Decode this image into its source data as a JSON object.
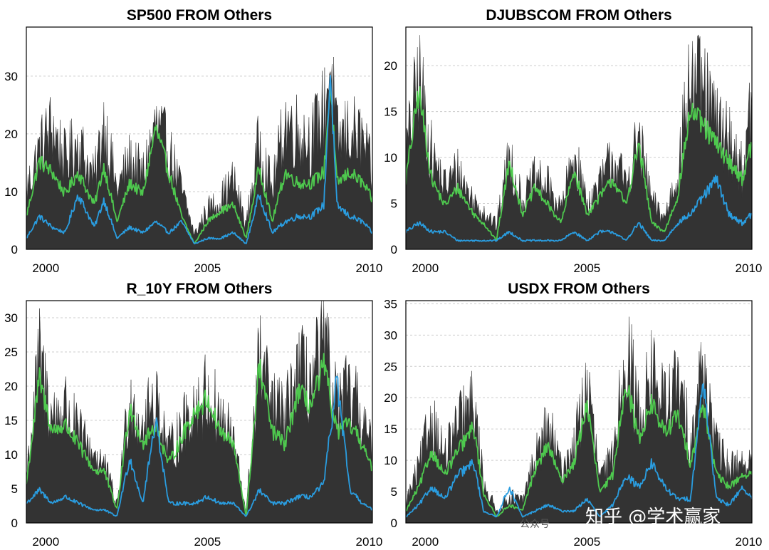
{
  "colors": {
    "total": "#333333",
    "green": "#4ec94e",
    "blue": "#2a9de0",
    "grid": "#cccccc",
    "frame": "#000000"
  },
  "chart_data": [
    {
      "type": "area",
      "title": "SP500 FROM Others",
      "x_ticks": [
        "2000",
        "2005",
        "2010"
      ],
      "x_tick_years": [
        2000,
        2005,
        2010
      ],
      "xlim": [
        1999.4,
        2010.1
      ],
      "ylim": [
        0,
        38.5
      ],
      "y_ticks": [
        0,
        10,
        20,
        30
      ],
      "grid": true,
      "series": [
        {
          "role": "total",
          "x": [
            1999.4,
            1999.8,
            2000.2,
            2000.6,
            2001.0,
            2001.5,
            2001.8,
            2002.2,
            2002.6,
            2003.0,
            2003.4,
            2003.8,
            2004.2,
            2004.6,
            2005.0,
            2005.4,
            2005.8,
            2006.2,
            2006.6,
            2007.0,
            2007.4,
            2007.8,
            2008.2,
            2008.6,
            2008.8,
            2009.0,
            2009.4,
            2009.8,
            2010.1
          ],
          "values": [
            12,
            20,
            25,
            18,
            22,
            14,
            26,
            12,
            18,
            15,
            25,
            20,
            12,
            3,
            8,
            10,
            14,
            5,
            22,
            12,
            26,
            24,
            22,
            28,
            38,
            22,
            24,
            22,
            15
          ]
        },
        {
          "role": "green",
          "x": [
            1999.4,
            1999.8,
            2000.2,
            2000.6,
            2001.0,
            2001.5,
            2001.8,
            2002.2,
            2002.6,
            2003.0,
            2003.4,
            2003.8,
            2004.2,
            2004.6,
            2005.0,
            2005.4,
            2005.8,
            2006.2,
            2006.6,
            2007.0,
            2007.4,
            2007.8,
            2008.2,
            2008.6,
            2008.8,
            2009.0,
            2009.4,
            2009.8,
            2010.1
          ],
          "values": [
            6,
            16,
            14,
            10,
            14,
            8,
            15,
            5,
            12,
            10,
            22,
            14,
            6,
            1,
            5,
            7,
            8,
            2,
            15,
            5,
            14,
            12,
            12,
            14,
            30,
            12,
            14,
            12,
            9
          ]
        },
        {
          "role": "blue",
          "x": [
            1999.4,
            1999.8,
            2000.2,
            2000.6,
            2001.0,
            2001.5,
            2001.8,
            2002.2,
            2002.6,
            2003.0,
            2003.4,
            2003.8,
            2004.2,
            2004.6,
            2005.0,
            2005.4,
            2005.8,
            2006.2,
            2006.6,
            2007.0,
            2007.4,
            2007.8,
            2008.2,
            2008.6,
            2008.8,
            2009.0,
            2009.4,
            2009.8,
            2010.1
          ],
          "values": [
            2,
            6,
            4,
            3,
            10,
            4,
            9,
            2,
            4,
            3,
            5,
            3,
            5,
            1,
            2,
            2,
            3,
            1,
            10,
            3,
            5,
            6,
            6,
            8,
            32,
            8,
            6,
            5,
            3
          ]
        }
      ]
    },
    {
      "type": "area",
      "title": "DJUBSCOM FROM Others",
      "x_ticks": [
        "2000",
        "2005",
        "2010"
      ],
      "x_tick_years": [
        2000,
        2005,
        2010
      ],
      "xlim": [
        1999.4,
        2010.1
      ],
      "ylim": [
        0,
        24.2
      ],
      "y_ticks": [
        0,
        5,
        10,
        15,
        20
      ],
      "grid": true,
      "series": [
        {
          "role": "total",
          "x": [
            1999.4,
            1999.8,
            2000.2,
            2000.6,
            2001.0,
            2001.5,
            2001.8,
            2002.2,
            2002.6,
            2003.0,
            2003.4,
            2003.8,
            2004.2,
            2004.6,
            2005.0,
            2005.4,
            2005.8,
            2006.2,
            2006.6,
            2007.0,
            2007.4,
            2007.8,
            2008.2,
            2008.6,
            2009.0,
            2009.4,
            2009.8,
            2010.1
          ],
          "values": [
            12,
            22,
            12,
            8,
            10,
            6,
            5,
            3,
            12,
            6,
            9,
            8,
            5,
            12,
            6,
            8,
            12,
            8,
            14,
            6,
            4,
            10,
            22,
            20,
            16,
            14,
            10,
            18
          ]
        },
        {
          "role": "green",
          "x": [
            1999.4,
            1999.8,
            2000.2,
            2000.6,
            2001.0,
            2001.5,
            2001.8,
            2002.2,
            2002.6,
            2003.0,
            2003.4,
            2003.8,
            2004.2,
            2004.6,
            2005.0,
            2005.4,
            2005.8,
            2006.2,
            2006.6,
            2007.0,
            2007.4,
            2007.8,
            2008.2,
            2008.6,
            2009.0,
            2009.4,
            2009.8,
            2010.1
          ],
          "values": [
            8,
            18,
            8,
            5,
            7,
            4,
            3,
            1,
            10,
            4,
            7,
            5,
            3,
            9,
            4,
            6,
            8,
            5,
            12,
            3,
            2,
            6,
            16,
            14,
            12,
            10,
            8,
            12
          ]
        },
        {
          "role": "blue",
          "x": [
            1999.4,
            1999.8,
            2000.2,
            2000.6,
            2001.0,
            2001.5,
            2001.8,
            2002.2,
            2002.6,
            2003.0,
            2003.4,
            2003.8,
            2004.2,
            2004.6,
            2005.0,
            2005.4,
            2005.8,
            2006.2,
            2006.6,
            2007.0,
            2007.4,
            2007.8,
            2008.2,
            2008.6,
            2009.0,
            2009.4,
            2009.8,
            2010.1
          ],
          "values": [
            2,
            3,
            2,
            2,
            1,
            1,
            1,
            1,
            2,
            1,
            1,
            1,
            1,
            2,
            1,
            2,
            2,
            1,
            3,
            1,
            1,
            3,
            4,
            6,
            8,
            4,
            3,
            4
          ]
        }
      ]
    },
    {
      "type": "area",
      "title": "R_10Y FROM Others",
      "x_ticks": [
        "2000",
        "2005",
        "2010"
      ],
      "x_tick_years": [
        2000,
        2005,
        2010
      ],
      "xlim": [
        1999.4,
        2010.1
      ],
      "ylim": [
        0,
        32.5
      ],
      "y_ticks": [
        0,
        5,
        10,
        15,
        20,
        25,
        30
      ],
      "grid": true,
      "series": [
        {
          "role": "total",
          "x": [
            1999.4,
            1999.8,
            2000.2,
            2000.6,
            2001.0,
            2001.5,
            2001.8,
            2002.2,
            2002.6,
            2003.0,
            2003.4,
            2003.8,
            2004.2,
            2004.6,
            2005.0,
            2005.4,
            2005.8,
            2006.2,
            2006.6,
            2007.0,
            2007.4,
            2007.8,
            2008.2,
            2008.6,
            2009.0,
            2009.4,
            2009.8,
            2010.1
          ],
          "values": [
            8,
            28,
            18,
            20,
            15,
            12,
            10,
            3,
            22,
            16,
            22,
            12,
            16,
            20,
            22,
            18,
            14,
            2,
            28,
            20,
            18,
            26,
            24,
            30,
            20,
            22,
            18,
            12
          ]
        },
        {
          "role": "green",
          "x": [
            1999.4,
            1999.8,
            2000.2,
            2000.6,
            2001.0,
            2001.5,
            2001.8,
            2002.2,
            2002.6,
            2003.0,
            2003.4,
            2003.8,
            2004.2,
            2004.6,
            2005.0,
            2005.4,
            2005.8,
            2006.2,
            2006.6,
            2007.0,
            2007.4,
            2007.8,
            2008.2,
            2008.6,
            2009.0,
            2009.4,
            2009.8,
            2010.1
          ],
          "values": [
            6,
            22,
            14,
            15,
            12,
            8,
            8,
            2,
            18,
            12,
            15,
            9,
            13,
            17,
            19,
            14,
            12,
            1,
            24,
            14,
            12,
            20,
            18,
            24,
            14,
            15,
            12,
            8
          ]
        },
        {
          "role": "blue",
          "x": [
            1999.4,
            1999.8,
            2000.2,
            2000.6,
            2001.0,
            2001.5,
            2001.8,
            2002.2,
            2002.6,
            2003.0,
            2003.4,
            2003.8,
            2004.2,
            2004.6,
            2005.0,
            2005.4,
            2005.8,
            2006.2,
            2006.6,
            2007.0,
            2007.4,
            2007.8,
            2008.2,
            2008.6,
            2009.0,
            2009.4,
            2009.8,
            2010.1
          ],
          "values": [
            3,
            5,
            3,
            4,
            3,
            2,
            2,
            1,
            10,
            3,
            16,
            3,
            3,
            3,
            4,
            3,
            3,
            1,
            5,
            3,
            3,
            4,
            4,
            6,
            22,
            5,
            3,
            2
          ]
        }
      ]
    },
    {
      "type": "area",
      "title": "USDX FROM Others",
      "x_ticks": [
        "2000",
        "2005",
        "2010"
      ],
      "x_tick_years": [
        2000,
        2005,
        2010
      ],
      "xlim": [
        1999.4,
        2010.1
      ],
      "ylim": [
        0,
        35.5
      ],
      "y_ticks": [
        0,
        5,
        10,
        15,
        20,
        25,
        30,
        35
      ],
      "grid": true,
      "series": [
        {
          "role": "total",
          "x": [
            1999.4,
            1999.8,
            2000.2,
            2000.6,
            2001.0,
            2001.5,
            2001.8,
            2002.2,
            2002.6,
            2003.0,
            2003.4,
            2003.8,
            2004.2,
            2004.6,
            2005.0,
            2005.4,
            2005.8,
            2006.2,
            2006.6,
            2007.0,
            2007.4,
            2007.8,
            2008.2,
            2008.6,
            2009.0,
            2009.4,
            2009.8,
            2010.1
          ],
          "values": [
            4,
            10,
            20,
            12,
            18,
            22,
            8,
            2,
            5,
            4,
            12,
            18,
            10,
            14,
            26,
            8,
            12,
            34,
            20,
            28,
            22,
            26,
            16,
            30,
            14,
            10,
            12,
            10
          ]
        },
        {
          "role": "green",
          "x": [
            1999.4,
            1999.8,
            2000.2,
            2000.6,
            2001.0,
            2001.5,
            2001.8,
            2002.2,
            2002.6,
            2003.0,
            2003.4,
            2003.8,
            2004.2,
            2004.6,
            2005.0,
            2005.4,
            2005.8,
            2006.2,
            2006.6,
            2007.0,
            2007.4,
            2007.8,
            2008.2,
            2008.6,
            2009.0,
            2009.4,
            2009.8,
            2010.1
          ],
          "values": [
            2,
            6,
            12,
            8,
            12,
            16,
            5,
            1,
            3,
            2,
            9,
            13,
            7,
            10,
            20,
            5,
            8,
            24,
            14,
            20,
            15,
            18,
            10,
            20,
            8,
            6,
            8,
            8
          ]
        },
        {
          "role": "blue",
          "x": [
            1999.4,
            1999.8,
            2000.2,
            2000.6,
            2001.0,
            2001.5,
            2001.8,
            2002.2,
            2002.6,
            2003.0,
            2003.4,
            2003.8,
            2004.2,
            2004.6,
            2005.0,
            2005.4,
            2005.8,
            2006.2,
            2006.6,
            2007.0,
            2007.4,
            2007.8,
            2008.2,
            2008.6,
            2009.0,
            2009.4,
            2009.8,
            2010.1
          ],
          "values": [
            1,
            3,
            6,
            4,
            8,
            10,
            2,
            1,
            6,
            1,
            2,
            3,
            2,
            2,
            4,
            1,
            3,
            8,
            6,
            10,
            6,
            4,
            4,
            24,
            4,
            3,
            6,
            4
          ]
        }
      ]
    }
  ],
  "watermark": {
    "text": "知乎 @学术赢家",
    "sub": "公众号"
  }
}
